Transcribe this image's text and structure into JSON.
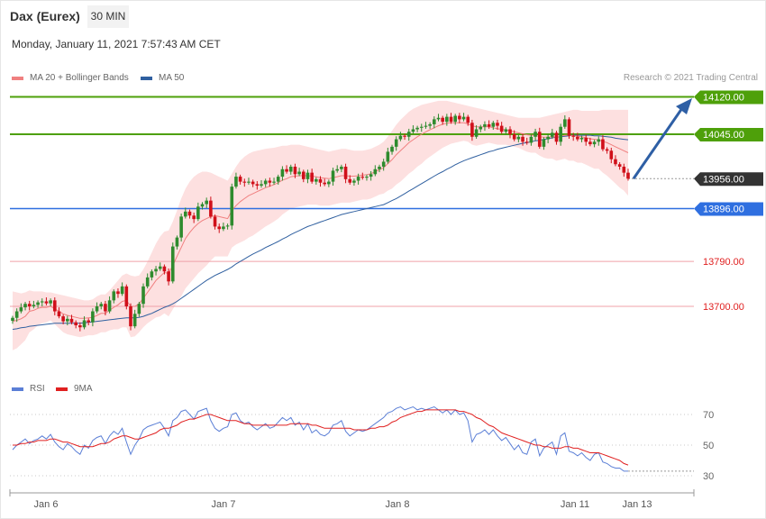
{
  "header": {
    "instrument": "Dax (Eurex)",
    "timeframe": "30 MIN",
    "datetime": "Monday, January 11, 2021 7:57:43 AM CET"
  },
  "legend_main": [
    {
      "label": "MA 20 + Bollinger Bands",
      "color": "#f08080"
    },
    {
      "label": "MA 50",
      "color": "#3060a0"
    }
  ],
  "legend_rsi": [
    {
      "label": "RSI",
      "color": "#5b7fd6"
    },
    {
      "label": "9MA",
      "color": "#e02020"
    }
  ],
  "credit": "Research © 2021 Trading Central",
  "colors": {
    "up": "#2e8b2e",
    "down": "#d0101a",
    "resistance": "#4ea00a",
    "support": "#2f6fe0",
    "secondary": "#e04050",
    "band": "#fde0e0",
    "arrow": "#2e5fa5"
  },
  "chart_data": [
    {
      "type": "candlestick",
      "x_ticks": [
        "Jan 6",
        "Jan 7",
        "Jan 8",
        "Jan 11",
        "Jan 13"
      ],
      "ylim": [
        13590,
        14150
      ],
      "levels": [
        {
          "value": 14120.0,
          "label": "14120.00",
          "kind": "resistance"
        },
        {
          "value": 14045.0,
          "label": "14045.00",
          "kind": "resistance"
        },
        {
          "value": 13956.0,
          "label": "13956.00",
          "kind": "last"
        },
        {
          "value": 13896.0,
          "label": "13896.00",
          "kind": "support"
        },
        {
          "value": 13790.0,
          "label": "13790.00",
          "kind": "secondary"
        },
        {
          "value": 13700.0,
          "label": "13700.00",
          "kind": "secondary"
        }
      ],
      "close": [
        13677,
        13690,
        13698,
        13705,
        13700,
        13703,
        13708,
        13710,
        13706,
        13712,
        13690,
        13680,
        13670,
        13675,
        13668,
        13662,
        13658,
        13672,
        13668,
        13690,
        13700,
        13705,
        13690,
        13712,
        13730,
        13725,
        13740,
        13700,
        13660,
        13685,
        13705,
        13740,
        13758,
        13770,
        13775,
        13780,
        13770,
        13750,
        13820,
        13838,
        13880,
        13890,
        13882,
        13875,
        13900,
        13905,
        13912,
        13880,
        13860,
        13855,
        13860,
        13862,
        13940,
        13960,
        13950,
        13948,
        13950,
        13945,
        13942,
        13945,
        13952,
        13948,
        13950,
        13960,
        13975,
        13970,
        13980,
        13965,
        13970,
        13955,
        13968,
        13950,
        13955,
        13948,
        13945,
        13950,
        13972,
        13975,
        13980,
        13955,
        13948,
        13952,
        13960,
        13958,
        13960,
        13965,
        13975,
        13980,
        13990,
        14010,
        14020,
        14035,
        14042,
        14040,
        14050,
        14055,
        14058,
        14060,
        14062,
        14065,
        14075,
        14078,
        14070,
        14080,
        14070,
        14082,
        14075,
        14080,
        14068,
        14040,
        14055,
        14060,
        14065,
        14060,
        14068,
        14062,
        14050,
        14055,
        14045,
        14035,
        14040,
        14030,
        14028,
        14040,
        14050,
        14020,
        14035,
        14040,
        14048,
        14030,
        14060,
        14075,
        14042,
        14040,
        14035,
        14038,
        14030,
        14025,
        14030,
        14035,
        14015,
        14012,
        13995,
        13985,
        13980,
        13968,
        13956
      ],
      "ma20": [
        13670,
        13672,
        13675,
        13680,
        13690,
        13692,
        13696,
        13698,
        13698,
        13700,
        13695,
        13690,
        13685,
        13682,
        13680,
        13678,
        13676,
        13676,
        13677,
        13678,
        13682,
        13686,
        13686,
        13692,
        13698,
        13703,
        13710,
        13712,
        13700,
        13700,
        13705,
        13716,
        13728,
        13740,
        13752,
        13760,
        13768,
        13766,
        13782,
        13800,
        13818,
        13836,
        13848,
        13858,
        13866,
        13872,
        13876,
        13880,
        13882,
        13880,
        13878,
        13876,
        13892,
        13902,
        13910,
        13916,
        13922,
        13926,
        13930,
        13934,
        13938,
        13941,
        13944,
        13948,
        13953,
        13956,
        13960,
        13961,
        13962,
        13962,
        13962,
        13961,
        13960,
        13958,
        13957,
        13956,
        13958,
        13960,
        13962,
        13962,
        13961,
        13961,
        13962,
        13963,
        13964,
        13966,
        13970,
        13974,
        13978,
        13986,
        13994,
        14004,
        14012,
        14020,
        14028,
        14034,
        14040,
        14045,
        14050,
        14054,
        14058,
        14062,
        14065,
        14067,
        14068,
        14068,
        14068,
        14068,
        14066,
        14062,
        14060,
        14060,
        14060,
        14060,
        14058,
        14056,
        14055,
        14054,
        14052,
        14050,
        14048,
        14046,
        14044,
        14043,
        14043,
        14040,
        14039,
        14039,
        14040,
        14039,
        14041,
        14043,
        14043,
        14042,
        14041,
        14040,
        14038,
        14036,
        14035,
        14034,
        14031,
        14028,
        14024,
        14020,
        14016,
        14012,
        14008
      ],
      "bb_upper": [
        13730,
        13728,
        13726,
        13728,
        13732,
        13730,
        13730,
        13730,
        13728,
        13728,
        13726,
        13724,
        13722,
        13720,
        13718,
        13716,
        13714,
        13712,
        13712,
        13714,
        13720,
        13724,
        13724,
        13732,
        13742,
        13752,
        13762,
        13766,
        13762,
        13760,
        13762,
        13774,
        13790,
        13808,
        13826,
        13840,
        13850,
        13852,
        13870,
        13892,
        13916,
        13936,
        13950,
        13960,
        13966,
        13970,
        13970,
        13968,
        13964,
        13960,
        13956,
        13952,
        13966,
        13980,
        13992,
        14000,
        14006,
        14010,
        14012,
        14014,
        14016,
        14017,
        14018,
        14020,
        14022,
        14022,
        14024,
        14024,
        14024,
        14022,
        14020,
        14018,
        14016,
        14014,
        14012,
        14010,
        14012,
        14014,
        14016,
        14016,
        14014,
        14012,
        14012,
        14012,
        14014,
        14016,
        14020,
        14024,
        14030,
        14040,
        14052,
        14064,
        14074,
        14082,
        14090,
        14096,
        14100,
        14104,
        14106,
        14108,
        14110,
        14112,
        14112,
        14112,
        14110,
        14108,
        14106,
        14104,
        14102,
        14100,
        14098,
        14096,
        14094,
        14092,
        14090,
        14088,
        14086,
        14084,
        14082,
        14080,
        14078,
        14078,
        14078,
        14078,
        14078,
        14078,
        14080,
        14082,
        14084,
        14086,
        14088,
        14090,
        14092,
        14094,
        14094,
        14092,
        14092,
        14092,
        14092,
        14092,
        14094,
        14094,
        14094,
        14094,
        14094,
        14094,
        14094
      ],
      "bb_lower": [
        13612,
        13616,
        13624,
        13632,
        13648,
        13654,
        13662,
        13666,
        13668,
        13672,
        13664,
        13656,
        13648,
        13644,
        13642,
        13640,
        13638,
        13640,
        13642,
        13642,
        13644,
        13648,
        13648,
        13652,
        13654,
        13654,
        13658,
        13658,
        13638,
        13640,
        13648,
        13658,
        13666,
        13672,
        13678,
        13680,
        13686,
        13680,
        13694,
        13708,
        13720,
        13736,
        13746,
        13756,
        13766,
        13774,
        13782,
        13792,
        13800,
        13800,
        13800,
        13800,
        13818,
        13824,
        13828,
        13832,
        13838,
        13842,
        13848,
        13854,
        13860,
        13865,
        13870,
        13876,
        13884,
        13890,
        13896,
        13898,
        13900,
        13902,
        13904,
        13904,
        13904,
        13902,
        13902,
        13902,
        13904,
        13906,
        13908,
        13908,
        13908,
        13910,
        13912,
        13914,
        13914,
        13916,
        13920,
        13924,
        13926,
        13932,
        13936,
        13944,
        13950,
        13958,
        13966,
        13972,
        13980,
        13986,
        13994,
        14000,
        14006,
        14012,
        14018,
        14022,
        14026,
        14028,
        14030,
        14032,
        14030,
        14024,
        14022,
        14024,
        14026,
        14028,
        14026,
        14024,
        14024,
        14024,
        14022,
        14020,
        14018,
        14014,
        14010,
        14008,
        14008,
        14002,
        13998,
        13996,
        13996,
        13992,
        13994,
        13996,
        13992,
        13992,
        13988,
        13988,
        13984,
        13980,
        13976,
        13976,
        13968,
        13962,
        13954,
        13946,
        13938,
        13932,
        13922
      ],
      "ma50": [
        13654,
        13655,
        13657,
        13658,
        13660,
        13661,
        13662,
        13663,
        13664,
        13665,
        13666,
        13666,
        13666,
        13666,
        13666,
        13666,
        13666,
        13667,
        13668,
        13669,
        13670,
        13671,
        13672,
        13673,
        13674,
        13675,
        13676,
        13677,
        13677,
        13677,
        13678,
        13680,
        13683,
        13686,
        13690,
        13694,
        13698,
        13701,
        13705,
        13710,
        13716,
        13722,
        13728,
        13734,
        13740,
        13746,
        13752,
        13757,
        13762,
        13766,
        13770,
        13774,
        13779,
        13785,
        13790,
        13795,
        13800,
        13805,
        13809,
        13813,
        13818,
        13822,
        13826,
        13830,
        13835,
        13839,
        13844,
        13848,
        13852,
        13856,
        13860,
        13863,
        13866,
        13869,
        13872,
        13875,
        13878,
        13881,
        13884,
        13886,
        13888,
        13890,
        13892,
        13894,
        13896,
        13898,
        13900,
        13902,
        13904,
        13908,
        13912,
        13916,
        13921,
        13926,
        13931,
        13936,
        13941,
        13946,
        13951,
        13956,
        13961,
        13966,
        13970,
        13975,
        13979,
        13984,
        13988,
        13992,
        13995,
        13998,
        14001,
        14004,
        14007,
        14010,
        14012,
        14015,
        14017,
        14019,
        14021,
        14023,
        14025,
        14027,
        14028,
        14030,
        14032,
        14033,
        14035,
        14036,
        14038,
        14039,
        14040,
        14041,
        14042,
        14043,
        14043,
        14043,
        14043,
        14043,
        14042,
        14042,
        14041,
        14040,
        14039,
        14037,
        14036,
        14035,
        14034
      ]
    },
    {
      "type": "line",
      "name": "RSI",
      "yticks": [
        70,
        50,
        30
      ],
      "ylim": [
        20,
        80
      ],
      "rsi": [
        47,
        50,
        52,
        54,
        51,
        53,
        54,
        56,
        54,
        57,
        52,
        49,
        47,
        51,
        49,
        46,
        44,
        50,
        48,
        53,
        55,
        56,
        51,
        56,
        59,
        57,
        61,
        52,
        44,
        50,
        54,
        60,
        62,
        63,
        64,
        65,
        61,
        56,
        66,
        68,
        72,
        73,
        70,
        67,
        72,
        73,
        74,
        66,
        61,
        59,
        61,
        62,
        70,
        71,
        66,
        64,
        65,
        62,
        60,
        62,
        64,
        61,
        62,
        65,
        68,
        66,
        68,
        63,
        65,
        60,
        64,
        58,
        60,
        57,
        56,
        58,
        63,
        64,
        66,
        59,
        56,
        58,
        60,
        59,
        60,
        62,
        64,
        66,
        68,
        71,
        72,
        74,
        75,
        73,
        74,
        75,
        73,
        74,
        73,
        74,
        75,
        73,
        71,
        73,
        70,
        73,
        70,
        71,
        66,
        52,
        57,
        58,
        60,
        57,
        60,
        56,
        53,
        55,
        51,
        47,
        50,
        45,
        44,
        52,
        54,
        43,
        48,
        50,
        52,
        44,
        56,
        58,
        46,
        45,
        43,
        45,
        42,
        40,
        44,
        45,
        39,
        38,
        36,
        35,
        35,
        33,
        33
      ],
      "ma9": [
        50,
        50,
        51,
        51,
        52,
        52,
        53,
        53,
        53,
        54,
        54,
        53,
        52,
        52,
        51,
        50,
        49,
        49,
        49,
        49,
        50,
        51,
        51,
        52,
        54,
        55,
        56,
        56,
        55,
        54,
        54,
        55,
        56,
        57,
        58,
        60,
        61,
        61,
        62,
        63,
        65,
        66,
        67,
        67,
        68,
        69,
        70,
        70,
        69,
        68,
        67,
        66,
        66,
        66,
        65,
        64,
        64,
        63,
        63,
        63,
        63,
        63,
        63,
        63,
        63,
        63,
        64,
        64,
        64,
        64,
        64,
        63,
        63,
        62,
        61,
        61,
        61,
        61,
        61,
        61,
        61,
        60,
        60,
        60,
        60,
        61,
        61,
        62,
        62,
        63,
        65,
        66,
        68,
        69,
        70,
        71,
        72,
        72,
        73,
        73,
        73,
        73,
        73,
        73,
        73,
        73,
        72,
        72,
        71,
        70,
        68,
        67,
        65,
        63,
        62,
        60,
        58,
        57,
        56,
        55,
        54,
        53,
        52,
        51,
        50,
        50,
        49,
        49,
        48,
        48,
        48,
        49,
        49,
        48,
        48,
        47,
        46,
        45,
        45,
        45,
        44,
        43,
        42,
        41,
        40,
        38,
        37
      ]
    }
  ]
}
